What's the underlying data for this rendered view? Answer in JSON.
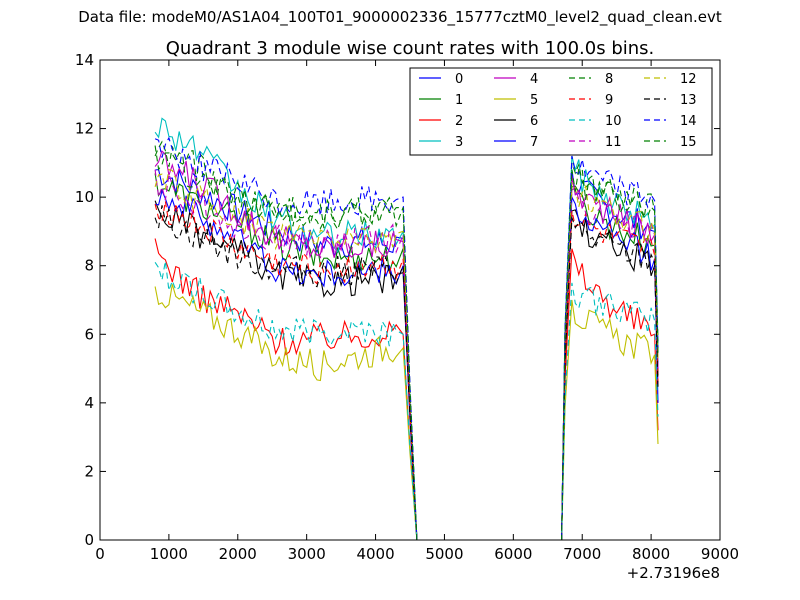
{
  "figure": {
    "suptitle": "Data file: modeM0/AS1A04_100T01_9000002336_15777cztM0_level2_quad_clean.evt"
  },
  "chart_data": {
    "type": "line",
    "title": "Quadrant 3 module wise count rates with 100.0s bins.",
    "xlabel": "",
    "ylabel": "",
    "x_offset_label": "+2.73196e8",
    "xlim": [
      0,
      9000
    ],
    "ylim": [
      0,
      14
    ],
    "xticks": [
      "0",
      "1000",
      "2000",
      "3000",
      "4000",
      "5000",
      "6000",
      "7000",
      "8000",
      "9000"
    ],
    "yticks": [
      "0",
      "2",
      "4",
      "6",
      "8",
      "10",
      "12",
      "14"
    ],
    "grid": false,
    "legend": {
      "placement": "top-right",
      "columns": 4
    },
    "x_segments": [
      {
        "start": 800,
        "end": 4400
      },
      {
        "start": 4500,
        "end": 6700
      },
      {
        "start": 6800,
        "end": 8100
      }
    ],
    "series": [
      {
        "name": "0",
        "color": "#0000ff",
        "dash": "solid",
        "profile": [
          10.8,
          10.2,
          9.6,
          9.0,
          8.6,
          8.7,
          8.6
        ],
        "edge": 8.8,
        "peak": 10.8,
        "end_seg": 9.0,
        "final": 5.0
      },
      {
        "name": "1",
        "color": "#008000",
        "dash": "solid",
        "profile": [
          10.5,
          9.8,
          9.3,
          8.6,
          8.2,
          8.3,
          8.2
        ],
        "edge": 8.5,
        "peak": 10.3,
        "end_seg": 8.6,
        "final": 5.5
      },
      {
        "name": "2",
        "color": "#ff0000",
        "dash": "solid",
        "profile": [
          8.4,
          7.2,
          6.6,
          5.8,
          5.9,
          6.0,
          6.1
        ],
        "edge": 6.0,
        "peak": 8.5,
        "end_seg": 6.0,
        "final": 3.2
      },
      {
        "name": "3",
        "color": "#00bfbf",
        "dash": "solid",
        "profile": [
          12.2,
          11.4,
          10.2,
          9.3,
          8.8,
          8.9,
          8.9
        ],
        "edge": 9.0,
        "peak": 11.2,
        "end_seg": 9.2,
        "final": 5.5
      },
      {
        "name": "4",
        "color": "#bf00bf",
        "dash": "solid",
        "profile": [
          11.0,
          10.5,
          9.6,
          8.8,
          8.5,
          8.6,
          8.6
        ],
        "edge": 8.7,
        "peak": 10.6,
        "end_seg": 8.9,
        "final": 4.5
      },
      {
        "name": "5",
        "color": "#bfbf00",
        "dash": "solid",
        "profile": [
          7.3,
          6.7,
          6.1,
          5.3,
          5.1,
          5.4,
          5.7
        ],
        "edge": 5.6,
        "peak": 7.0,
        "end_seg": 5.4,
        "final": 2.8
      },
      {
        "name": "6",
        "color": "#000000",
        "dash": "solid",
        "profile": [
          9.6,
          9.0,
          8.4,
          7.7,
          7.5,
          7.6,
          7.6
        ],
        "edge": 7.8,
        "peak": 9.6,
        "end_seg": 8.0,
        "final": 4.8
      },
      {
        "name": "7",
        "color": "#0000ff",
        "dash": "solid",
        "profile": [
          10.2,
          9.5,
          8.8,
          7.9,
          7.7,
          7.8,
          7.8
        ],
        "edge": 8.0,
        "peak": 10.0,
        "end_seg": 8.2,
        "final": 4.0
      },
      {
        "name": "8",
        "color": "#008000",
        "dash": "dashed",
        "profile": [
          11.4,
          10.9,
          10.0,
          9.6,
          9.5,
          9.5,
          9.6
        ],
        "edge": 9.7,
        "peak": 11.0,
        "end_seg": 9.6,
        "final": 5.8
      },
      {
        "name": "9",
        "color": "#ff0000",
        "dash": "dashed",
        "profile": [
          9.8,
          9.2,
          8.5,
          8.0,
          7.9,
          8.0,
          8.0
        ],
        "edge": 8.2,
        "peak": 9.6,
        "end_seg": 8.3,
        "final": 4.6
      },
      {
        "name": "10",
        "color": "#00bfbf",
        "dash": "dashed",
        "profile": [
          7.9,
          7.3,
          6.6,
          6.1,
          6.1,
          6.2,
          6.0
        ],
        "edge": 6.0,
        "peak": 7.5,
        "end_seg": 6.4,
        "final": 3.6
      },
      {
        "name": "11",
        "color": "#bf00bf",
        "dash": "dashed",
        "profile": [
          10.4,
          9.9,
          9.2,
          8.8,
          8.6,
          8.7,
          8.8
        ],
        "edge": 8.9,
        "peak": 10.2,
        "end_seg": 8.9,
        "final": 5.0
      },
      {
        "name": "12",
        "color": "#bfbf00",
        "dash": "dashed",
        "profile": [
          10.6,
          10.0,
          9.4,
          8.9,
          8.8,
          8.8,
          8.9
        ],
        "edge": 9.0,
        "peak": 10.4,
        "end_seg": 9.0,
        "final": 5.2
      },
      {
        "name": "13",
        "color": "#000000",
        "dash": "dashed",
        "profile": [
          9.5,
          8.9,
          8.3,
          7.9,
          7.8,
          7.9,
          7.9
        ],
        "edge": 8.0,
        "peak": 9.4,
        "end_seg": 8.1,
        "final": 4.4
      },
      {
        "name": "14",
        "color": "#0000ff",
        "dash": "dashed",
        "profile": [
          11.6,
          11.0,
          10.4,
          9.8,
          9.8,
          9.9,
          9.9
        ],
        "edge": 10.0,
        "peak": 11.2,
        "end_seg": 9.9,
        "final": 5.6
      },
      {
        "name": "15",
        "color": "#008000",
        "dash": "dashed",
        "profile": [
          11.2,
          10.6,
          10.0,
          9.6,
          9.5,
          9.6,
          9.6
        ],
        "edge": 9.7,
        "peak": 10.8,
        "end_seg": 9.6,
        "final": 5.4
      }
    ]
  }
}
